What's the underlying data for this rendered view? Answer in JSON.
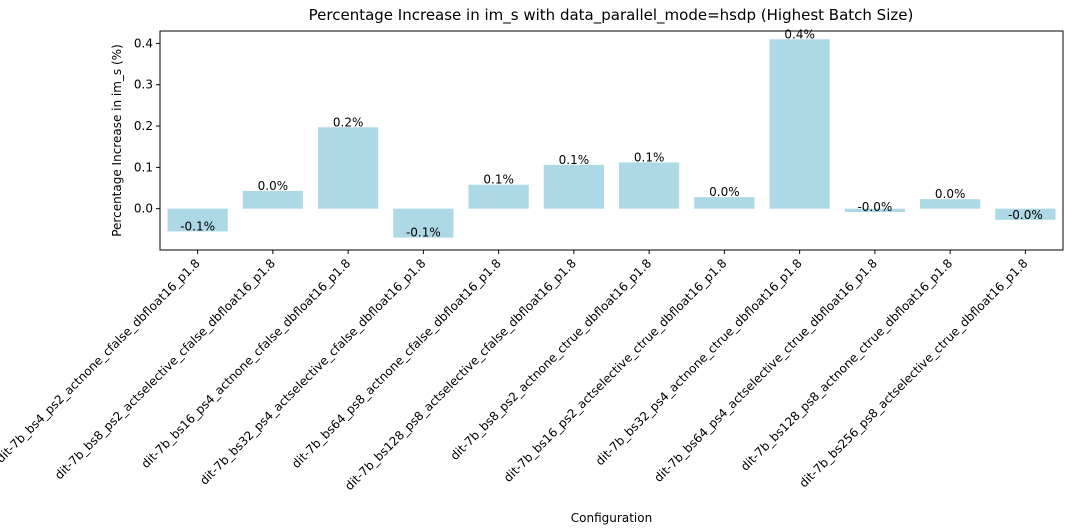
{
  "chart_data": {
    "type": "bar",
    "title": "Percentage Increase in im_s with data_parallel_mode=hsdp (Highest Batch Size)",
    "xlabel": "Configuration",
    "ylabel": "Percentage Increase in im_s (%)",
    "ylim": [
      -0.1,
      0.43
    ],
    "yticks": [
      0.0,
      0.1,
      0.2,
      0.3,
      0.4
    ],
    "ytick_labels": [
      "0.0",
      "0.1",
      "0.2",
      "0.3",
      "0.4"
    ],
    "grid": false,
    "bar_color": "#add8e6",
    "categories": [
      "dit-7b_bs4_ps2_actnone_cfalse_dbfloat16_p1.8",
      "dit-7b_bs8_ps2_actselective_cfalse_dbfloat16_p1.8",
      "dit-7b_bs16_ps4_actnone_cfalse_dbfloat16_p1.8",
      "dit-7b_bs32_ps4_actselective_cfalse_dbfloat16_p1.8",
      "dit-7b_bs64_ps8_actnone_cfalse_dbfloat16_p1.8",
      "dit-7b_bs128_ps8_actselective_cfalse_dbfloat16_p1.8",
      "dit-7b_bs8_ps2_actnone_ctrue_dbfloat16_p1.8",
      "dit-7b_bs16_ps2_actselective_ctrue_dbfloat16_p1.8",
      "dit-7b_bs32_ps4_actnone_ctrue_dbfloat16_p1.8",
      "dit-7b_bs64_ps4_actselective_ctrue_dbfloat16_p1.8",
      "dit-7b_bs128_ps8_actnone_ctrue_dbfloat16_p1.8",
      "dit-7b_bs256_ps8_actselective_ctrue_dbfloat16_p1.8"
    ],
    "values": [
      -0.055,
      0.043,
      0.197,
      -0.07,
      0.058,
      0.106,
      0.112,
      0.028,
      0.41,
      -0.008,
      0.023,
      -0.027
    ],
    "data_labels": [
      "-0.1%",
      "0.0%",
      "0.2%",
      "-0.1%",
      "0.1%",
      "0.1%",
      "0.1%",
      "0.0%",
      "0.4%",
      "-0.0%",
      "0.0%",
      "-0.0%"
    ]
  }
}
